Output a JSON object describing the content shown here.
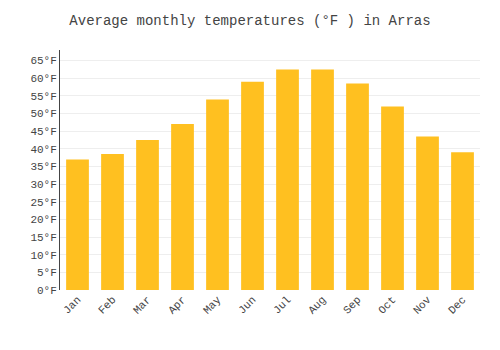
{
  "chart_data": {
    "type": "bar",
    "title": "Average monthly temperatures (°F ) in Arras",
    "categories": [
      "Jan",
      "Feb",
      "Mar",
      "Apr",
      "May",
      "Jun",
      "Jul",
      "Aug",
      "Sep",
      "Oct",
      "Nov",
      "Dec"
    ],
    "values": [
      37,
      38.5,
      42.5,
      47,
      54,
      59,
      62.5,
      62.5,
      58.5,
      52,
      43.5,
      39
    ],
    "color": "#FFC020",
    "ylim": [
      0,
      68
    ],
    "yticks": [
      {
        "value": 0,
        "label": "0°F"
      },
      {
        "value": 5,
        "label": "5°F"
      },
      {
        "value": 10,
        "label": "10°F"
      },
      {
        "value": 15,
        "label": "15°F"
      },
      {
        "value": 20,
        "label": "20°F"
      },
      {
        "value": 25,
        "label": "25°F"
      },
      {
        "value": 30,
        "label": "30°F"
      },
      {
        "value": 35,
        "label": "35°F"
      },
      {
        "value": 40,
        "label": "40°F"
      },
      {
        "value": 45,
        "label": "45°F"
      },
      {
        "value": 50,
        "label": "50°F"
      },
      {
        "value": 55,
        "label": "55°F"
      },
      {
        "value": 60,
        "label": "60°F"
      },
      {
        "value": 65,
        "label": "65°F"
      }
    ],
    "grid": true
  }
}
